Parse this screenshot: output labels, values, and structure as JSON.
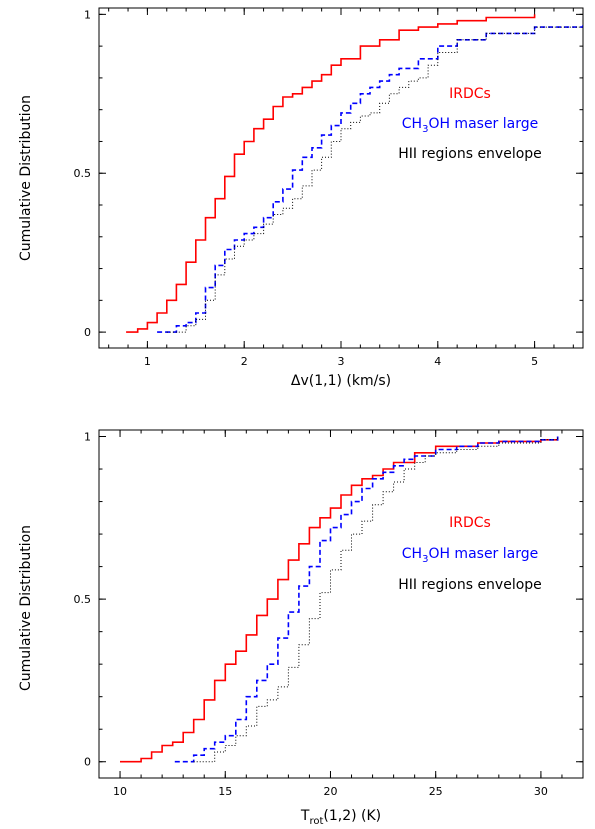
{
  "chart_data": [
    {
      "type": "line",
      "xlabel": "Δv(1,1) (km/s)",
      "ylabel": "Cumulative Distribution",
      "xlim": [
        0.5,
        5.5
      ],
      "ylim": [
        -0.05,
        1.02
      ],
      "xticks": [
        1,
        2,
        3,
        4,
        5
      ],
      "yticks": [
        0,
        0.5,
        1
      ],
      "ytick_labels": [
        "0",
        "0.5",
        "1"
      ],
      "legend_position": "center-right",
      "series": [
        {
          "name": "IRDCs",
          "color": "#ff0000",
          "style": "solid",
          "x": [
            0.78,
            0.9,
            1.0,
            1.1,
            1.2,
            1.3,
            1.4,
            1.5,
            1.6,
            1.7,
            1.8,
            1.9,
            2.0,
            2.1,
            2.2,
            2.3,
            2.4,
            2.5,
            2.6,
            2.7,
            2.8,
            2.9,
            3.0,
            3.2,
            3.4,
            3.6,
            3.8,
            4.0,
            4.2,
            4.5,
            5.0
          ],
          "y": [
            0.0,
            0.01,
            0.03,
            0.06,
            0.1,
            0.15,
            0.22,
            0.29,
            0.36,
            0.42,
            0.49,
            0.56,
            0.6,
            0.64,
            0.67,
            0.71,
            0.74,
            0.75,
            0.77,
            0.79,
            0.81,
            0.84,
            0.86,
            0.9,
            0.92,
            0.95,
            0.96,
            0.97,
            0.98,
            0.99,
            1.0
          ]
        },
        {
          "name": "CH3OH maser large",
          "color": "#0000ff",
          "style": "dashed",
          "x": [
            1.1,
            1.3,
            1.4,
            1.5,
            1.6,
            1.7,
            1.8,
            1.9,
            2.0,
            2.1,
            2.2,
            2.3,
            2.4,
            2.5,
            2.6,
            2.7,
            2.8,
            2.9,
            3.0,
            3.1,
            3.2,
            3.3,
            3.4,
            3.5,
            3.6,
            3.8,
            4.0,
            4.2,
            4.5,
            5.0,
            5.5
          ],
          "y": [
            0.0,
            0.02,
            0.03,
            0.06,
            0.14,
            0.21,
            0.26,
            0.29,
            0.31,
            0.33,
            0.36,
            0.41,
            0.45,
            0.51,
            0.55,
            0.58,
            0.62,
            0.65,
            0.69,
            0.72,
            0.75,
            0.77,
            0.79,
            0.81,
            0.83,
            0.86,
            0.9,
            0.92,
            0.94,
            0.96,
            0.97
          ]
        },
        {
          "name": "HII regions envelope",
          "color": "#000000",
          "style": "dotted",
          "x": [
            1.2,
            1.4,
            1.5,
            1.6,
            1.7,
            1.8,
            1.9,
            2.0,
            2.1,
            2.2,
            2.3,
            2.4,
            2.5,
            2.6,
            2.7,
            2.8,
            2.9,
            3.0,
            3.1,
            3.2,
            3.3,
            3.4,
            3.5,
            3.6,
            3.7,
            3.8,
            3.9,
            4.0,
            4.2,
            4.5,
            5.0,
            5.5
          ],
          "y": [
            0.0,
            0.02,
            0.04,
            0.1,
            0.18,
            0.23,
            0.27,
            0.29,
            0.31,
            0.34,
            0.37,
            0.39,
            0.42,
            0.46,
            0.51,
            0.55,
            0.6,
            0.64,
            0.66,
            0.68,
            0.69,
            0.72,
            0.75,
            0.77,
            0.79,
            0.8,
            0.84,
            0.88,
            0.92,
            0.94,
            0.96,
            0.98
          ]
        }
      ],
      "legend_entries": [
        {
          "text": "IRDCs",
          "color": "#ff0000"
        },
        {
          "text": "CH3OH maser large",
          "color": "#0000ff"
        },
        {
          "text": "HII regions envelope",
          "color": "#000000"
        }
      ]
    },
    {
      "type": "line",
      "xlabel": "Trot(1,2) (K)",
      "ylabel": "Cumulative Distribution",
      "xlim": [
        9,
        32
      ],
      "ylim": [
        -0.05,
        1.02
      ],
      "xticks": [
        10,
        15,
        20,
        25,
        30
      ],
      "yticks": [
        0,
        0.5,
        1
      ],
      "ytick_labels": [
        "0",
        "0.5",
        "1"
      ],
      "legend_position": "center-right",
      "series": [
        {
          "name": "IRDCs",
          "color": "#ff0000",
          "style": "solid",
          "x": [
            10.0,
            11.0,
            11.5,
            12.0,
            12.5,
            13.0,
            13.5,
            14.0,
            14.5,
            15.0,
            15.5,
            16.0,
            16.5,
            17.0,
            17.5,
            18.0,
            18.5,
            19.0,
            19.5,
            20.0,
            20.5,
            21.0,
            21.5,
            22.0,
            22.5,
            23.0,
            24.0,
            25.0,
            26.0,
            27.0,
            28.0,
            30.0,
            30.8
          ],
          "y": [
            0.0,
            0.01,
            0.03,
            0.05,
            0.06,
            0.09,
            0.13,
            0.19,
            0.25,
            0.3,
            0.34,
            0.39,
            0.45,
            0.5,
            0.56,
            0.62,
            0.67,
            0.72,
            0.75,
            0.78,
            0.82,
            0.85,
            0.87,
            0.88,
            0.9,
            0.92,
            0.95,
            0.97,
            0.97,
            0.98,
            0.985,
            0.99,
            1.0
          ]
        },
        {
          "name": "CH3OH maser large",
          "color": "#0000ff",
          "style": "dashed",
          "x": [
            12.6,
            13.5,
            14.0,
            14.5,
            15.0,
            15.5,
            16.0,
            16.5,
            17.0,
            17.5,
            18.0,
            18.5,
            19.0,
            19.5,
            20.0,
            20.5,
            21.0,
            21.5,
            22.0,
            22.5,
            23.0,
            23.5,
            24.0,
            25.0,
            26.0,
            27.0,
            28.0,
            30.0,
            30.8
          ],
          "y": [
            0.0,
            0.02,
            0.04,
            0.06,
            0.08,
            0.13,
            0.2,
            0.25,
            0.3,
            0.38,
            0.46,
            0.54,
            0.6,
            0.68,
            0.72,
            0.76,
            0.8,
            0.84,
            0.87,
            0.89,
            0.91,
            0.93,
            0.94,
            0.96,
            0.97,
            0.98,
            0.985,
            0.99,
            1.0
          ]
        },
        {
          "name": "HII regions envelope",
          "color": "#000000",
          "style": "dotted",
          "x": [
            13.5,
            14.5,
            15.0,
            15.5,
            16.0,
            16.5,
            17.0,
            17.5,
            18.0,
            18.5,
            19.0,
            19.5,
            20.0,
            20.5,
            21.0,
            21.5,
            22.0,
            22.5,
            23.0,
            23.5,
            24.0,
            24.5,
            25.0,
            26.0,
            27.0,
            28.0,
            30.0,
            30.8
          ],
          "y": [
            0.0,
            0.03,
            0.05,
            0.08,
            0.11,
            0.17,
            0.19,
            0.23,
            0.29,
            0.36,
            0.44,
            0.52,
            0.59,
            0.65,
            0.7,
            0.74,
            0.79,
            0.83,
            0.86,
            0.9,
            0.92,
            0.94,
            0.95,
            0.96,
            0.97,
            0.98,
            0.99,
            1.0
          ]
        }
      ],
      "legend_entries": [
        {
          "text": "IRDCs",
          "color": "#ff0000"
        },
        {
          "text": "CH3OH maser large",
          "color": "#0000ff"
        },
        {
          "text": "HII regions envelope",
          "color": "#000000"
        }
      ]
    }
  ]
}
